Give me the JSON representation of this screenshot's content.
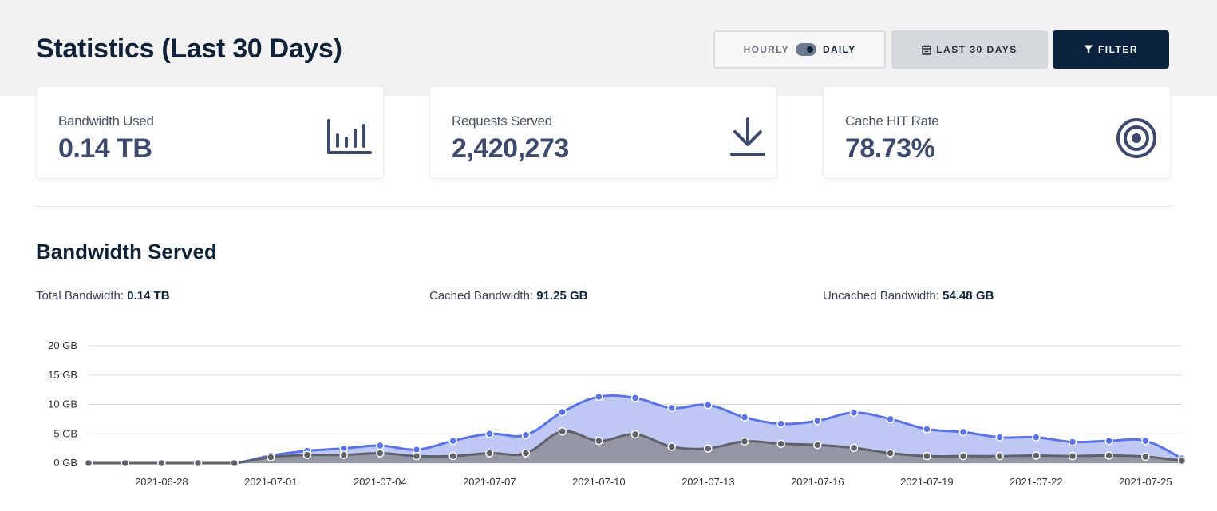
{
  "header": {
    "title": "Statistics (Last 30 Days)",
    "toggle": {
      "off_label": "HOURLY",
      "on_label": "DAILY",
      "selected": "DAILY"
    },
    "range_label": "LAST 30 DAYS",
    "filter_label": "FILTER"
  },
  "cards": [
    {
      "label": "Bandwidth Used",
      "value": "0.14 TB",
      "icon": "bar-chart-icon"
    },
    {
      "label": "Requests Served",
      "value": "2,420,273",
      "icon": "download-icon"
    },
    {
      "label": "Cache HIT Rate",
      "value": "78.73%",
      "icon": "target-icon"
    }
  ],
  "section": {
    "title": "Bandwidth Served",
    "stats": [
      {
        "label": "Total Bandwidth:",
        "value": "0.14 TB"
      },
      {
        "label": "Cached Bandwidth:",
        "value": "91.25 GB"
      },
      {
        "label": "Uncached Bandwidth:",
        "value": "54.48 GB"
      }
    ]
  },
  "colors": {
    "accent": "#5b73e8",
    "accent_fill": "#bfc8f5",
    "secondary": "#5f6169",
    "secondary_fill": "#9496a3",
    "brand_dark": "#0c2340"
  },
  "chart_data": {
    "type": "area",
    "x": [
      "2021-06-26",
      "2021-06-27",
      "2021-06-28",
      "2021-06-29",
      "2021-06-30",
      "2021-07-01",
      "2021-07-02",
      "2021-07-03",
      "2021-07-04",
      "2021-07-05",
      "2021-07-06",
      "2021-07-07",
      "2021-07-08",
      "2021-07-09",
      "2021-07-10",
      "2021-07-11",
      "2021-07-12",
      "2021-07-13",
      "2021-07-14",
      "2021-07-15",
      "2021-07-16",
      "2021-07-17",
      "2021-07-18",
      "2021-07-19",
      "2021-07-20",
      "2021-07-21",
      "2021-07-22",
      "2021-07-23",
      "2021-07-24",
      "2021-07-25",
      "2021-07-26"
    ],
    "x_tick_labels": [
      "2021-06-28",
      "2021-07-01",
      "2021-07-04",
      "2021-07-07",
      "2021-07-10",
      "2021-07-13",
      "2021-07-16",
      "2021-07-19",
      "2021-07-22",
      "2021-07-25"
    ],
    "y_tick_labels": [
      "0 GB",
      "5 GB",
      "10 GB",
      "15 GB",
      "20 GB"
    ],
    "ylim": [
      0,
      20
    ],
    "grid": true,
    "series": [
      {
        "values": [
          0,
          0,
          0,
          0,
          0,
          1.3,
          2.1,
          2.5,
          3.0,
          2.3,
          3.8,
          5.0,
          4.8,
          8.7,
          11.3,
          11.1,
          9.4,
          9.9,
          7.8,
          6.7,
          7.2,
          8.6,
          7.5,
          5.8,
          5.3,
          4.4,
          4.4,
          3.6,
          3.8,
          3.8,
          0.8
        ]
      },
      {
        "values": [
          0,
          0,
          0,
          0,
          0,
          1.0,
          1.4,
          1.4,
          1.7,
          1.2,
          1.2,
          1.7,
          1.7,
          5.4,
          3.8,
          4.9,
          2.8,
          2.5,
          3.7,
          3.3,
          3.1,
          2.6,
          1.7,
          1.2,
          1.2,
          1.2,
          1.3,
          1.2,
          1.3,
          1.1,
          0.4
        ]
      }
    ]
  }
}
